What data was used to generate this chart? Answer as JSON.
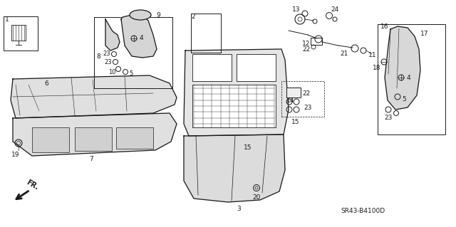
{
  "bg_color": "#ffffff",
  "line_color": "#1a1a1a",
  "diagram_code": "SR43-B4100D",
  "figsize": [
    6.4,
    3.19
  ],
  "dpi": 100
}
